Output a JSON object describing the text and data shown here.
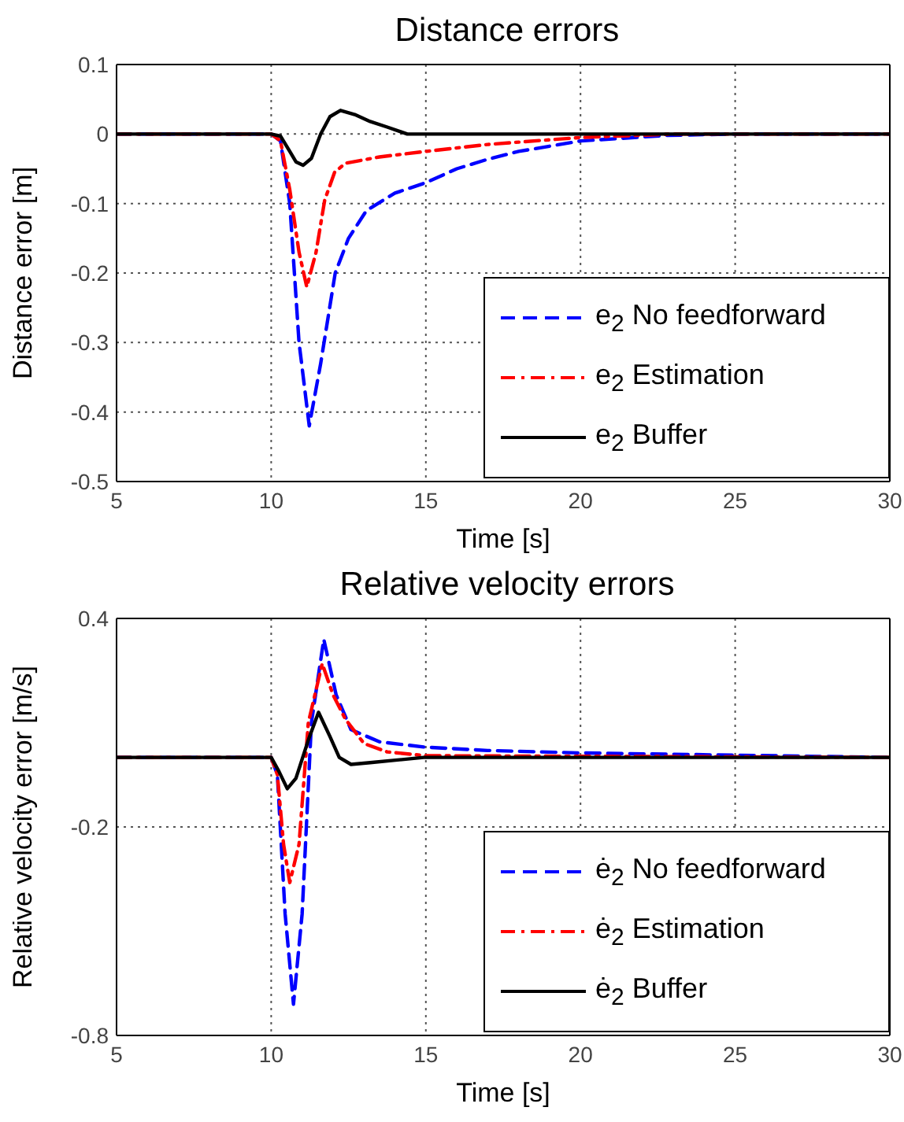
{
  "chart_data": [
    {
      "type": "line",
      "title": "Distance errors",
      "xlabel": "Time [s]",
      "ylabel": "Distance error [m]",
      "xlim": [
        5,
        30
      ],
      "xticks": [
        5,
        10,
        15,
        20,
        25,
        30
      ],
      "ylim": [
        -0.5,
        0.1
      ],
      "yticks": [
        -0.5,
        -0.4,
        -0.3,
        -0.2,
        -0.1,
        0,
        0.1
      ],
      "grid": true,
      "legend": "bottom right",
      "marker": "none",
      "series": [
        {
          "name": "e$_{2}$ No feedforward",
          "color": "#0000ff",
          "line_style": "dashed",
          "x": [
            5,
            10,
            10.3,
            10.6,
            10.9,
            11.23,
            11.6,
            12.07,
            12.5,
            13.08,
            14,
            15,
            16,
            16.95,
            18,
            20,
            22.8,
            25,
            30
          ],
          "values": [
            0,
            0,
            -0.01,
            -0.1,
            -0.3,
            -0.42,
            -0.33,
            -0.2,
            -0.15,
            -0.11,
            -0.085,
            -0.07,
            -0.05,
            -0.037,
            -0.025,
            -0.01,
            -0.002,
            0,
            0
          ]
        },
        {
          "name": "e$_{2}$ Estimation",
          "color": "#ff0000",
          "line_style": "dashdot",
          "x": [
            5,
            10,
            10.3,
            10.6,
            10.9,
            11.15,
            11.45,
            11.73,
            12.05,
            12.4,
            13.5,
            15,
            17,
            20,
            23,
            30
          ],
          "values": [
            0,
            0,
            -0.01,
            -0.08,
            -0.17,
            -0.22,
            -0.17,
            -0.095,
            -0.055,
            -0.042,
            -0.033,
            -0.025,
            -0.015,
            -0.005,
            0,
            0
          ]
        },
        {
          "name": "e$_{2}$ Buffer",
          "color": "#000000",
          "line_style": "solid",
          "x": [
            5,
            10,
            10.3,
            10.6,
            10.8,
            11.03,
            11.3,
            11.6,
            11.9,
            12.24,
            12.7,
            13.2,
            13.75,
            14.4,
            30
          ],
          "values": [
            0,
            0,
            -0.003,
            -0.025,
            -0.04,
            -0.045,
            -0.035,
            0,
            0.025,
            0.034,
            0.028,
            0.018,
            0.01,
            0,
            0
          ]
        }
      ]
    },
    {
      "type": "line",
      "title": "Relative velocity errors",
      "xlabel": "Time [s]",
      "ylabel": "Relative velocity error [m/s]",
      "xlim": [
        5,
        30
      ],
      "xticks": [
        5,
        10,
        15,
        20,
        25,
        30
      ],
      "ylim": [
        -0.8,
        0.4
      ],
      "yticks": [
        -0.8,
        -0.2,
        0.4
      ],
      "grid": true,
      "legend": "bottom right",
      "marker": "none",
      "series": [
        {
          "name": "ė$_{2}$ No feedforward",
          "color": "#0000ff",
          "line_style": "dashed",
          "x": [
            5,
            10,
            10.2,
            10.45,
            10.72,
            11,
            11.3,
            11.7,
            12.1,
            12.58,
            13.5,
            14.93,
            17,
            20,
            30
          ],
          "values": [
            0,
            0,
            -0.05,
            -0.45,
            -0.71,
            -0.45,
            0.1,
            0.34,
            0.18,
            0.08,
            0.045,
            0.03,
            0.02,
            0.013,
            0
          ]
        },
        {
          "name": "ė$_{2}$ Estimation",
          "color": "#ff0000",
          "line_style": "dashdot",
          "x": [
            5,
            10,
            10.2,
            10.4,
            10.6,
            10.9,
            11.2,
            11.65,
            12,
            12.4,
            13,
            13.75,
            15,
            30
          ],
          "values": [
            0,
            0,
            -0.05,
            -0.25,
            -0.36,
            -0.25,
            0.1,
            0.27,
            0.18,
            0.11,
            0.04,
            0.016,
            0.005,
            0
          ]
        },
        {
          "name": "ė$_{2}$ Buffer",
          "color": "#000000",
          "line_style": "solid",
          "x": [
            5,
            10,
            10.25,
            10.52,
            10.8,
            11.2,
            11.53,
            11.9,
            12.2,
            12.58,
            13.2,
            14.93,
            30
          ],
          "values": [
            0,
            0,
            -0.04,
            -0.09,
            -0.06,
            0.05,
            0.13,
            0.06,
            0.0,
            -0.02,
            -0.015,
            0,
            0
          ]
        }
      ]
    }
  ]
}
